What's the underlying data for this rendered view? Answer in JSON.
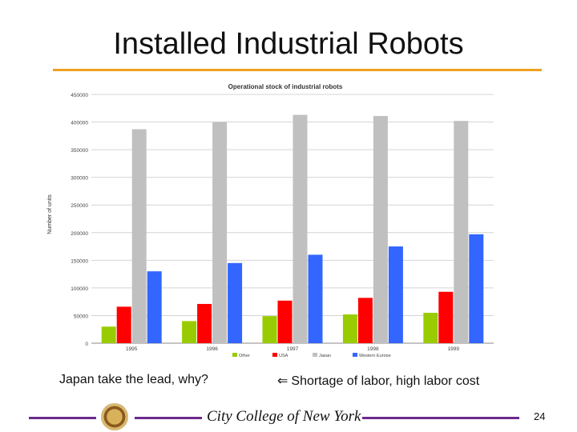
{
  "slide": {
    "title": "Installed Industrial Robots",
    "caption_left": "Japan take the lead, why?",
    "caption_right": "Shortage of labor, high labor cost",
    "arrow_icon": "arrow-left-icon",
    "footer_text": "City College of New York",
    "page_number": "24",
    "accent_color": "#f0a020",
    "footer_color": "#6b2a8a"
  },
  "chart_data": {
    "type": "bar",
    "title": "Operational stock of industrial robots",
    "ylabel": "Number of units",
    "xlabel": "",
    "ylim": [
      0,
      450000
    ],
    "yticks": [
      0,
      50000,
      100000,
      150000,
      200000,
      250000,
      300000,
      350000,
      400000,
      450000
    ],
    "ytick_labels": [
      "0",
      "50000",
      "100000",
      "150000",
      "200000",
      "250000",
      "300000",
      "350000",
      "400000",
      "450000"
    ],
    "categories": [
      "1995",
      "1996",
      "1997",
      "1998",
      "1999"
    ],
    "series": [
      {
        "name": "Other",
        "color": "#99cc00",
        "values": [
          30000,
          40000,
          49000,
          52000,
          55000
        ]
      },
      {
        "name": "USA",
        "color": "#ff0000",
        "values": [
          66000,
          71000,
          77000,
          82000,
          93000
        ]
      },
      {
        "name": "Japan",
        "color": "#c0c0c0",
        "values": [
          387000,
          400000,
          413000,
          411000,
          402000
        ]
      },
      {
        "name": "Western Europe",
        "color": "#3366ff",
        "values": [
          130000,
          145000,
          160000,
          175000,
          197000
        ]
      }
    ],
    "grid": true,
    "legend_position": "bottom"
  }
}
